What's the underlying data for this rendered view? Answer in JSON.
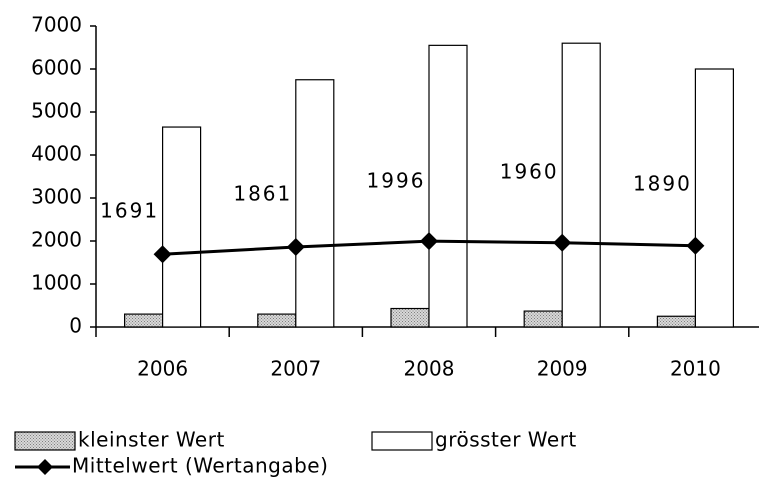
{
  "chart_data": {
    "type": "bar",
    "categories": [
      "2006",
      "2007",
      "2008",
      "2009",
      "2010"
    ],
    "series": [
      {
        "name": "kleinster Wert",
        "type": "bar",
        "color": "#c0c0c0",
        "values": [
          300,
          300,
          430,
          370,
          250
        ]
      },
      {
        "name": "grösster Wert",
        "type": "bar",
        "color": "#ffffff",
        "values": [
          4650,
          5750,
          6550,
          6600,
          6000
        ]
      },
      {
        "name": "Mittelwert (Wertangabe)",
        "type": "line",
        "color": "#000000",
        "values": [
          1691,
          1861,
          1996,
          1960,
          1890
        ]
      }
    ],
    "ylim": [
      0,
      7000
    ],
    "yticks": [
      0,
      1000,
      2000,
      3000,
      4000,
      5000,
      6000,
      7000
    ],
    "grid": false
  }
}
